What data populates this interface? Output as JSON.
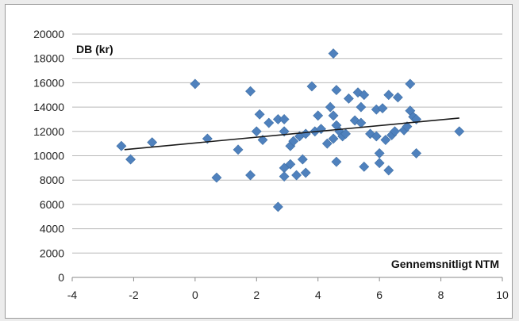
{
  "chart_data": {
    "type": "scatter",
    "title": "",
    "ylabel": "DB (kr)",
    "xlabel": "Gennemsnitligt NTM",
    "xlim": [
      -4,
      10
    ],
    "ylim": [
      0,
      20000
    ],
    "x_ticks": [
      "-4",
      "-2",
      "0",
      "2",
      "4",
      "6",
      "8",
      "10"
    ],
    "y_ticks": [
      "0",
      "2000",
      "4000",
      "6000",
      "8000",
      "10000",
      "12000",
      "14000",
      "16000",
      "18000",
      "20000"
    ],
    "grid": "horizontal",
    "marker": "diamond",
    "colors": {
      "marker": "#4f81bd",
      "trendline": "#1a1a1a",
      "grid": "#b8b8b8"
    },
    "trendline": {
      "type": "linear",
      "x": [
        -2.3,
        8.6
      ],
      "y": [
        10500,
        13100
      ]
    },
    "points": [
      {
        "x": -2.4,
        "y": 10800
      },
      {
        "x": -2.1,
        "y": 9700
      },
      {
        "x": -1.4,
        "y": 11100
      },
      {
        "x": 0.0,
        "y": 15900
      },
      {
        "x": 0.4,
        "y": 11400
      },
      {
        "x": 0.7,
        "y": 8200
      },
      {
        "x": 1.4,
        "y": 10500
      },
      {
        "x": 1.8,
        "y": 15300
      },
      {
        "x": 1.8,
        "y": 8400
      },
      {
        "x": 2.0,
        "y": 12000
      },
      {
        "x": 2.1,
        "y": 13400
      },
      {
        "x": 2.2,
        "y": 11300
      },
      {
        "x": 2.4,
        "y": 12700
      },
      {
        "x": 2.7,
        "y": 13000
      },
      {
        "x": 2.7,
        "y": 5800
      },
      {
        "x": 2.9,
        "y": 13000
      },
      {
        "x": 2.9,
        "y": 12000
      },
      {
        "x": 2.9,
        "y": 9000
      },
      {
        "x": 2.9,
        "y": 8300
      },
      {
        "x": 3.1,
        "y": 9300
      },
      {
        "x": 3.1,
        "y": 10800
      },
      {
        "x": 3.2,
        "y": 11200
      },
      {
        "x": 3.3,
        "y": 8400
      },
      {
        "x": 3.4,
        "y": 11600
      },
      {
        "x": 3.5,
        "y": 9700
      },
      {
        "x": 3.6,
        "y": 8600
      },
      {
        "x": 3.6,
        "y": 11800
      },
      {
        "x": 3.8,
        "y": 15700
      },
      {
        "x": 3.9,
        "y": 12000
      },
      {
        "x": 4.0,
        "y": 13300
      },
      {
        "x": 4.1,
        "y": 12200
      },
      {
        "x": 4.3,
        "y": 11000
      },
      {
        "x": 4.4,
        "y": 14000
      },
      {
        "x": 4.5,
        "y": 11400
      },
      {
        "x": 4.5,
        "y": 18400
      },
      {
        "x": 4.5,
        "y": 13300
      },
      {
        "x": 4.6,
        "y": 15400
      },
      {
        "x": 4.6,
        "y": 12500
      },
      {
        "x": 4.6,
        "y": 9500
      },
      {
        "x": 4.7,
        "y": 12000
      },
      {
        "x": 4.8,
        "y": 11600
      },
      {
        "x": 4.9,
        "y": 11800
      },
      {
        "x": 5.0,
        "y": 14700
      },
      {
        "x": 5.2,
        "y": 12900
      },
      {
        "x": 5.3,
        "y": 15200
      },
      {
        "x": 5.4,
        "y": 14000
      },
      {
        "x": 5.4,
        "y": 12700
      },
      {
        "x": 5.5,
        "y": 15000
      },
      {
        "x": 5.5,
        "y": 9100
      },
      {
        "x": 5.7,
        "y": 11800
      },
      {
        "x": 5.9,
        "y": 11600
      },
      {
        "x": 5.9,
        "y": 13800
      },
      {
        "x": 6.0,
        "y": 10200
      },
      {
        "x": 6.0,
        "y": 9400
      },
      {
        "x": 6.1,
        "y": 13900
      },
      {
        "x": 6.2,
        "y": 11300
      },
      {
        "x": 6.3,
        "y": 15000
      },
      {
        "x": 6.3,
        "y": 8800
      },
      {
        "x": 6.4,
        "y": 11700
      },
      {
        "x": 6.5,
        "y": 12000
      },
      {
        "x": 6.6,
        "y": 14800
      },
      {
        "x": 6.8,
        "y": 12100
      },
      {
        "x": 6.9,
        "y": 12400
      },
      {
        "x": 7.0,
        "y": 15900
      },
      {
        "x": 7.0,
        "y": 13700
      },
      {
        "x": 7.1,
        "y": 13200
      },
      {
        "x": 7.2,
        "y": 13000
      },
      {
        "x": 7.2,
        "y": 10200
      },
      {
        "x": 8.6,
        "y": 12000
      }
    ]
  }
}
